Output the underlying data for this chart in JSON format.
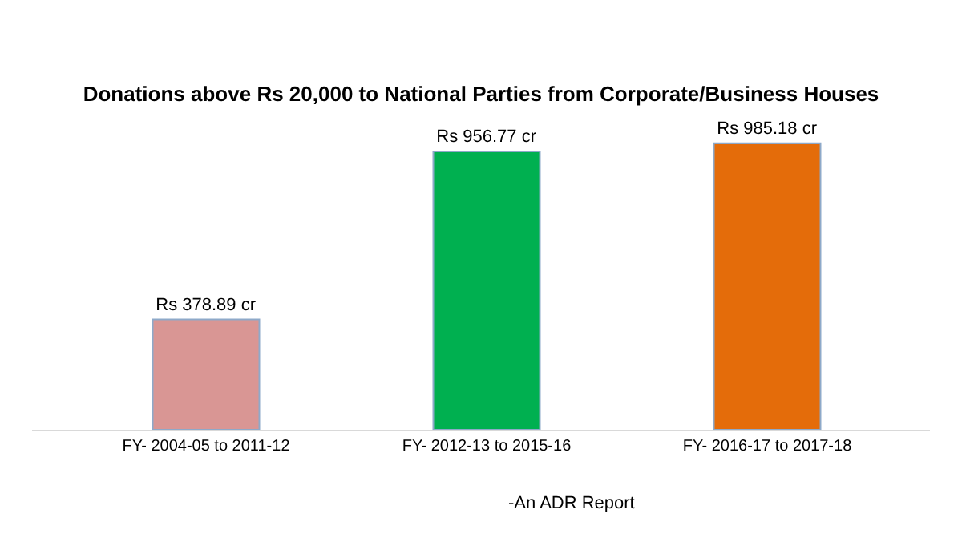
{
  "chart_data": {
    "type": "bar",
    "title": "Donations above Rs 20,000 to National Parties from Corporate/Business Houses",
    "categories": [
      "FY- 2004-05 to 2011-12",
      "FY- 2012-13 to 2015-16",
      "FY- 2016-17 to 2017-18"
    ],
    "values": [
      378.89,
      956.77,
      985.18
    ],
    "colors": [
      "#d99694",
      "#00b050",
      "#e46c0a"
    ],
    "value_labels": [
      "Rs 378.89 cr",
      "Rs 956.77 cr",
      "Rs 985.18 cr"
    ],
    "annotations": [
      "-An ADR Report"
    ],
    "legend": false
  }
}
